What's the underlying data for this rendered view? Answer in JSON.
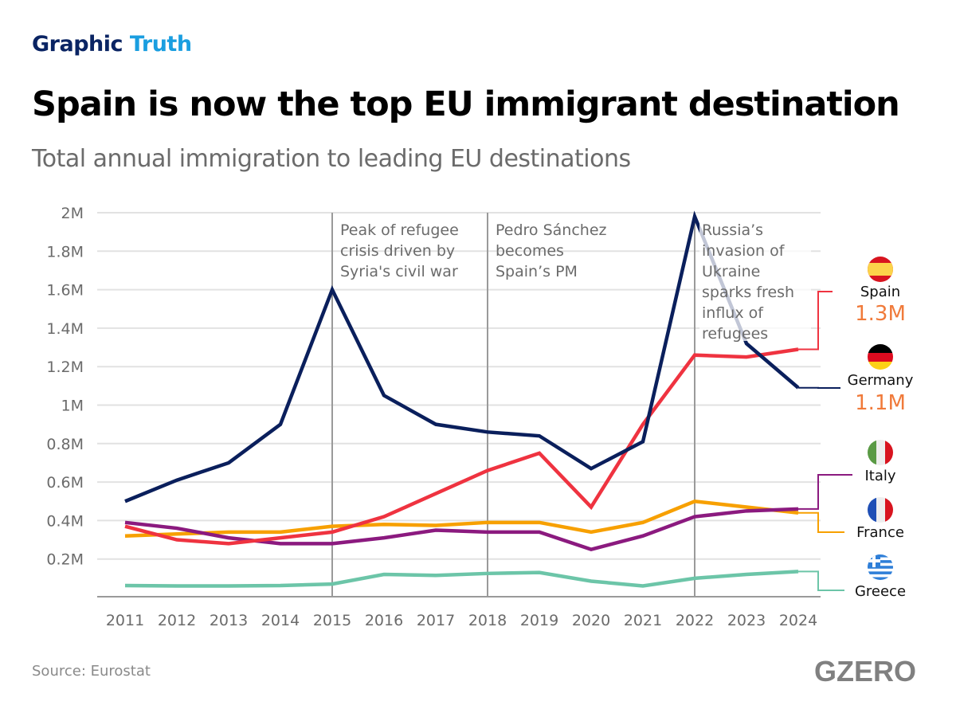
{
  "header": {
    "brand_part1": "Graphic",
    "brand_part2": "Truth",
    "title": "Spain is now the top EU immigrant destination",
    "subtitle": "Total annual immigration to leading EU destinations"
  },
  "footer": {
    "source": "Source: Eurostat",
    "logo": "GZERO"
  },
  "chart_data": {
    "type": "line",
    "title": "Spain is now the top EU immigrant destination",
    "subtitle": "Total annual immigration to leading EU destinations",
    "xlabel": "",
    "ylabel": "",
    "x": [
      "2011",
      "2012",
      "2013",
      "2014",
      "2015",
      "2016",
      "2017",
      "2018",
      "2019",
      "2020",
      "2021",
      "2022",
      "2023",
      "2024"
    ],
    "ylim": [
      0,
      2000000
    ],
    "yticks": [
      200000,
      400000,
      600000,
      800000,
      1000000,
      1200000,
      1400000,
      1600000,
      1800000,
      2000000
    ],
    "ytick_labels": [
      "0.2M",
      "0.4M",
      "0.6M",
      "0.8M",
      "1M",
      "1.2M",
      "1.4M",
      "1.6M",
      "1.8M",
      "2M"
    ],
    "grid": "horizontal",
    "legend_placement": "right (end labels)",
    "series": [
      {
        "name": "Spain",
        "color": "#ef3340",
        "flag": "spain-flag",
        "end_label": "1.3M",
        "values": [
          370000,
          300000,
          280000,
          310000,
          340000,
          420000,
          540000,
          660000,
          750000,
          470000,
          900000,
          1260000,
          1250000,
          1290000
        ]
      },
      {
        "name": "Germany",
        "color": "#0a1f5c",
        "flag": "germany-flag",
        "end_label": "1.1M",
        "values": [
          500000,
          610000,
          700000,
          900000,
          1600000,
          1050000,
          900000,
          860000,
          840000,
          670000,
          810000,
          1980000,
          1320000,
          1090000
        ]
      },
      {
        "name": "Italy",
        "color": "#8b1a7f",
        "flag": "italy-flag",
        "values": [
          390000,
          360000,
          310000,
          280000,
          280000,
          310000,
          350000,
          340000,
          340000,
          250000,
          320000,
          420000,
          450000,
          460000
        ]
      },
      {
        "name": "France",
        "color": "#f7a000",
        "flag": "france-flag",
        "values": [
          320000,
          330000,
          340000,
          340000,
          370000,
          380000,
          375000,
          390000,
          390000,
          340000,
          390000,
          500000,
          470000,
          440000
        ]
      },
      {
        "name": "Greece",
        "color": "#6cc5a8",
        "flag": "greece-flag",
        "values": [
          62000,
          60000,
          60000,
          62000,
          70000,
          120000,
          115000,
          125000,
          130000,
          85000,
          60000,
          100000,
          120000,
          135000
        ]
      }
    ],
    "annotations": [
      {
        "x": "2015",
        "lines": [
          "Peak of refugee",
          "crisis driven by",
          "Syria's civil war"
        ]
      },
      {
        "x": "2018",
        "lines": [
          "Pedro Sánchez",
          "becomes",
          "Spain’s PM"
        ]
      },
      {
        "x": "2022",
        "lines": [
          "Russia’s",
          "invasion of",
          "Ukraine",
          "sparks fresh",
          "influx of",
          "refugees"
        ]
      }
    ]
  }
}
